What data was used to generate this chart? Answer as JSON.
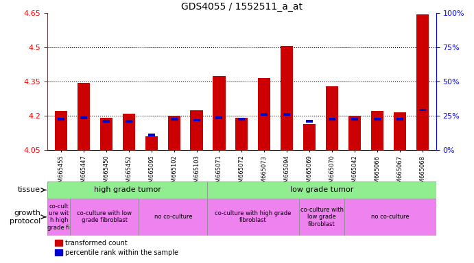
{
  "title": "GDS4055 / 1552511_a_at",
  "samples": [
    "GSM665455",
    "GSM665447",
    "GSM665450",
    "GSM665452",
    "GSM665095",
    "GSM665102",
    "GSM665103",
    "GSM665071",
    "GSM665072",
    "GSM665073",
    "GSM665094",
    "GSM665069",
    "GSM665070",
    "GSM665042",
    "GSM665066",
    "GSM665067",
    "GSM665068"
  ],
  "red_values": [
    4.22,
    4.345,
    4.19,
    4.21,
    4.11,
    4.2,
    4.225,
    4.375,
    4.19,
    4.365,
    4.505,
    4.165,
    4.33,
    4.2,
    4.22,
    4.215,
    4.645
  ],
  "blue_values": [
    4.185,
    4.19,
    4.175,
    4.175,
    4.115,
    4.185,
    4.18,
    4.19,
    4.185,
    4.205,
    4.205,
    4.175,
    4.185,
    4.185,
    4.185,
    4.185,
    4.225
  ],
  "ymin": 4.05,
  "ymax": 4.65,
  "y_ticks_left": [
    4.05,
    4.2,
    4.35,
    4.5,
    4.65
  ],
  "y_ticks_right": [
    0,
    25,
    50,
    75,
    100
  ],
  "dotted_lines": [
    4.2,
    4.35,
    4.5
  ],
  "tissue_color": "#90ee90",
  "growth_color": "#ee82ee",
  "bar_width": 0.55,
  "bar_color_red": "#cc0000",
  "bar_color_blue": "#0000cc",
  "background_color": "#ffffff",
  "tissue_groups": [
    {
      "label": "high grade tumor",
      "start": 0,
      "end": 7
    },
    {
      "label": "low grade tumor",
      "start": 7,
      "end": 17
    }
  ],
  "growth_groups": [
    {
      "label": "co-cult\nure wit\nh high\ngrade fi",
      "start": 0,
      "end": 1
    },
    {
      "label": "co-culture with low\ngrade fibroblast",
      "start": 1,
      "end": 4
    },
    {
      "label": "no co-culture",
      "start": 4,
      "end": 7
    },
    {
      "label": "co-culture with high grade\nfibroblast",
      "start": 7,
      "end": 11
    },
    {
      "label": "co-culture with\nlow grade\nfibroblast",
      "start": 11,
      "end": 13
    },
    {
      "label": "no co-culture",
      "start": 13,
      "end": 17
    }
  ]
}
